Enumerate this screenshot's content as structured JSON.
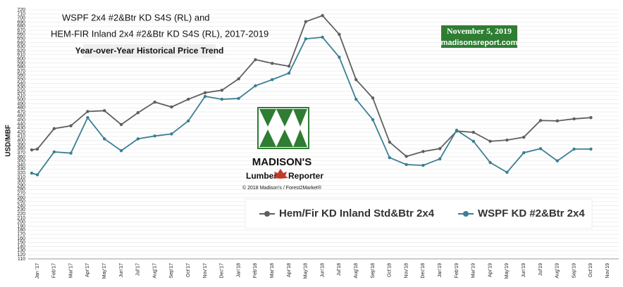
{
  "chart_data": {
    "type": "line",
    "title": [
      "WSPF 2x4 #2&Btr KD S4S (RL)  and",
      "HEM-FIR Inland 2x4 #2&Btr KD S4S (RL), 2017-2019"
    ],
    "subtitle": "Year-over-Year Historical Price Trend",
    "date": "November 5, 2019",
    "website": "madisonsreport.com",
    "logo": {
      "name": "MADISON'S",
      "lumber": "Lumber",
      "reporter": "Reporter",
      "copyright": "© 2018 Madison's / Forest2Market®"
    },
    "y_label": "USD/MBF",
    "categories": [
      null,
      "Jan '17",
      "Feb'17",
      "Mar'17",
      "Apr'17",
      "May'17",
      "Jun'17",
      "Jul'17",
      "Aug'17",
      "Sep'17",
      "Oct'17",
      "Nov'17",
      "Dec'17",
      "Jan'18",
      "Feb'18",
      "Mar'18",
      "Apr'18",
      "May'18",
      "Jun'18",
      "Jul'18",
      "Aug'18",
      "Sep'18",
      "Oct'18",
      "Nov'18",
      "Dec'18",
      "Jan'19",
      "Feb'19",
      "Mar'19",
      "Apr'19",
      "May'19",
      "Jun'19",
      "Jul'19",
      "Aug'19",
      "Sep'19",
      "Oct'19",
      "Nov'19"
    ],
    "series": [
      {
        "name": "Hem/Fir KD Inland Std&Btr 2x4",
        "color": "#5f5f5f",
        "values": [
          377,
          379,
          429,
          436,
          471,
          473,
          439,
          468,
          494,
          482,
          501,
          517,
          523,
          551,
          598,
          589,
          582,
          691,
          706,
          660,
          549,
          504,
          396,
          361,
          373,
          380,
          423,
          420,
          398,
          401,
          408,
          449,
          448,
          453,
          456,
          null
        ]
      },
      {
        "name": "WSPF KD #2&Btr 2x4",
        "color": "#3b7f93",
        "values": [
          320,
          316,
          372,
          369,
          456,
          404,
          375,
          404,
          411,
          416,
          448,
          508,
          501,
          503,
          534,
          549,
          565,
          649,
          653,
          604,
          501,
          451,
          358,
          341,
          339,
          355,
          425,
          398,
          346,
          322,
          370,
          380,
          350,
          379,
          379,
          null
        ]
      }
    ],
    "ylim": [
      110,
      720
    ],
    "yticks": [
      110,
      120,
      130,
      140,
      150,
      160,
      170,
      180,
      190,
      200,
      210,
      220,
      230,
      240,
      250,
      260,
      270,
      280,
      290,
      300,
      310,
      320,
      330,
      340,
      350,
      360,
      370,
      380,
      390,
      400,
      410,
      420,
      430,
      440,
      450,
      460,
      470,
      480,
      490,
      500,
      510,
      520,
      530,
      540,
      550,
      560,
      570,
      580,
      590,
      600,
      610,
      620,
      630,
      640,
      650,
      660,
      670,
      680,
      690,
      700,
      710,
      720
    ],
    "grid": true
  }
}
